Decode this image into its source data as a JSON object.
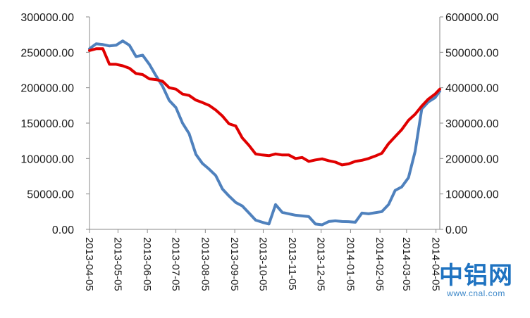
{
  "chart_data": {
    "type": "line",
    "title": "",
    "xlabel": "",
    "ylabel": "",
    "y_left_lim": [
      0,
      300000
    ],
    "y_right_lim": [
      0,
      600000
    ],
    "y_left_ticks": [
      "0.00",
      "50000.00",
      "100000.00",
      "150000.00",
      "200000.00",
      "250000.00",
      "300000.00"
    ],
    "y_right_ticks": [
      "0.00",
      "100000.00",
      "200000.00",
      "300000.00",
      "400000.00",
      "500000.00",
      "600000.00"
    ],
    "x_tick_labels": [
      "2013-04-05",
      "2013-05-05",
      "2013-06-05",
      "2013-07-05",
      "2013-08-05",
      "2013-09-05",
      "2013-10-05",
      "2013-11-05",
      "2013-12-05",
      "2014-01-05",
      "2014-02-05",
      "2014-03-05",
      "2014-04-05"
    ],
    "grid": false,
    "legend": "none",
    "series": [
      {
        "axis": "left",
        "color": "#4f81bd",
        "points": [
          [
            "2013-04-05",
            255000
          ],
          [
            "2013-04-12",
            262000
          ],
          [
            "2013-04-19",
            261000
          ],
          [
            "2013-04-26",
            259000
          ],
          [
            "2013-05-03",
            260000
          ],
          [
            "2013-05-10",
            266000
          ],
          [
            "2013-05-17",
            260000
          ],
          [
            "2013-05-24",
            244000
          ],
          [
            "2013-05-31",
            246000
          ],
          [
            "2013-06-07",
            233000
          ],
          [
            "2013-06-14",
            217000
          ],
          [
            "2013-06-21",
            202000
          ],
          [
            "2013-06-28",
            182000
          ],
          [
            "2013-07-05",
            172000
          ],
          [
            "2013-07-12",
            150000
          ],
          [
            "2013-07-19",
            135000
          ],
          [
            "2013-07-26",
            106000
          ],
          [
            "2013-08-02",
            93000
          ],
          [
            "2013-08-09",
            85000
          ],
          [
            "2013-08-16",
            76000
          ],
          [
            "2013-08-23",
            57000
          ],
          [
            "2013-08-30",
            47000
          ],
          [
            "2013-09-06",
            38000
          ],
          [
            "2013-09-13",
            33000
          ],
          [
            "2013-09-20",
            23000
          ],
          [
            "2013-09-27",
            13000
          ],
          [
            "2013-10-04",
            10000
          ],
          [
            "2013-10-11",
            7500
          ],
          [
            "2013-10-18",
            35000
          ],
          [
            "2013-10-25",
            24000
          ],
          [
            "2013-11-01",
            22000
          ],
          [
            "2013-11-08",
            20000
          ],
          [
            "2013-11-15",
            19000
          ],
          [
            "2013-11-22",
            18000
          ],
          [
            "2013-11-29",
            7500
          ],
          [
            "2013-12-06",
            6500
          ],
          [
            "2013-12-13",
            11000
          ],
          [
            "2013-12-20",
            12000
          ],
          [
            "2013-12-27",
            11000
          ],
          [
            "2014-01-03",
            10800
          ],
          [
            "2014-01-10",
            10000
          ],
          [
            "2014-01-17",
            23000
          ],
          [
            "2014-01-24",
            22000
          ],
          [
            "2014-01-31",
            23500
          ],
          [
            "2014-02-07",
            25000
          ],
          [
            "2014-02-14",
            35000
          ],
          [
            "2014-02-21",
            55000
          ],
          [
            "2014-02-28",
            60000
          ],
          [
            "2014-03-07",
            73000
          ],
          [
            "2014-03-14",
            110000
          ],
          [
            "2014-03-21",
            170000
          ],
          [
            "2014-03-28",
            180000
          ],
          [
            "2014-04-04",
            186000
          ],
          [
            "2014-04-09",
            195000
          ]
        ]
      },
      {
        "axis": "right",
        "color": "#e00000",
        "points": [
          [
            "2013-04-05",
            505000
          ],
          [
            "2013-04-12",
            510000
          ],
          [
            "2013-04-19",
            510000
          ],
          [
            "2013-04-26",
            466000
          ],
          [
            "2013-05-03",
            466000
          ],
          [
            "2013-05-10",
            462000
          ],
          [
            "2013-05-17",
            455000
          ],
          [
            "2013-05-24",
            440000
          ],
          [
            "2013-05-31",
            437000
          ],
          [
            "2013-06-07",
            425000
          ],
          [
            "2013-06-14",
            423000
          ],
          [
            "2013-06-21",
            418000
          ],
          [
            "2013-06-28",
            400000
          ],
          [
            "2013-07-05",
            396000
          ],
          [
            "2013-07-12",
            382000
          ],
          [
            "2013-07-19",
            378000
          ],
          [
            "2013-07-26",
            365000
          ],
          [
            "2013-08-02",
            358000
          ],
          [
            "2013-08-09",
            350000
          ],
          [
            "2013-08-16",
            337000
          ],
          [
            "2013-08-23",
            320000
          ],
          [
            "2013-08-30",
            298000
          ],
          [
            "2013-09-06",
            292000
          ],
          [
            "2013-09-13",
            258000
          ],
          [
            "2013-09-20",
            237000
          ],
          [
            "2013-09-27",
            213000
          ],
          [
            "2013-10-04",
            210000
          ],
          [
            "2013-10-11",
            208000
          ],
          [
            "2013-10-18",
            213000
          ],
          [
            "2013-10-25",
            210000
          ],
          [
            "2013-11-01",
            210000
          ],
          [
            "2013-11-08",
            200000
          ],
          [
            "2013-11-15",
            203000
          ],
          [
            "2013-11-22",
            192000
          ],
          [
            "2013-11-29",
            196000
          ],
          [
            "2013-12-06",
            199000
          ],
          [
            "2013-12-13",
            194000
          ],
          [
            "2013-12-20",
            190000
          ],
          [
            "2013-12-27",
            182000
          ],
          [
            "2014-01-03",
            185000
          ],
          [
            "2014-01-10",
            192000
          ],
          [
            "2014-01-17",
            195000
          ],
          [
            "2014-01-24",
            200000
          ],
          [
            "2014-01-31",
            207000
          ],
          [
            "2014-02-07",
            215000
          ],
          [
            "2014-02-14",
            242000
          ],
          [
            "2014-02-21",
            262000
          ],
          [
            "2014-02-28",
            282000
          ],
          [
            "2014-03-07",
            308000
          ],
          [
            "2014-03-14",
            325000
          ],
          [
            "2014-03-21",
            348000
          ],
          [
            "2014-03-28",
            368000
          ],
          [
            "2014-04-04",
            382000
          ],
          [
            "2014-04-09",
            396000
          ]
        ]
      }
    ]
  },
  "watermark": {
    "logo_text": "中铝网",
    "url": "www.cnal.com"
  }
}
